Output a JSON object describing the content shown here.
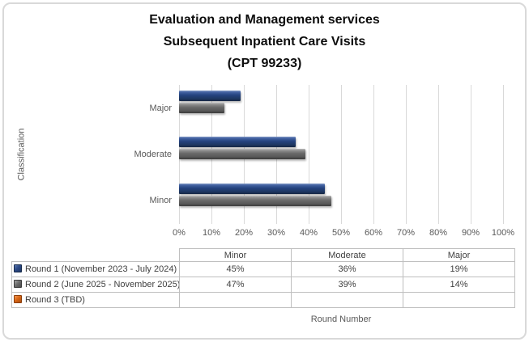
{
  "title": {
    "lines": [
      "Evaluation and Management services",
      "Subsequent Inpatient Care Visits",
      "(CPT 99233)"
    ]
  },
  "chart_data": {
    "type": "bar",
    "orientation": "horizontal",
    "title": "Evaluation and Management services Subsequent Inpatient Care Visits (CPT 99233)",
    "categories": [
      "Minor",
      "Moderate",
      "Major"
    ],
    "category_display_order_top_to_bottom": [
      "Major",
      "Moderate",
      "Minor"
    ],
    "series": [
      {
        "name": "Round 1 (November 2023 - July 2024)",
        "color": "#1F3864",
        "values": [
          45,
          36,
          19
        ]
      },
      {
        "name": "Round 2 (June 2025 - November 2025)",
        "color": "#595959",
        "values": [
          47,
          39,
          14
        ]
      },
      {
        "name": "Round 3 (TBD)",
        "color": "#C55A11",
        "values": [
          null,
          null,
          null
        ]
      }
    ],
    "xlabel": "Round Number",
    "ylabel": "Classification",
    "xlim": [
      0,
      100
    ],
    "xticks": [
      "0%",
      "10%",
      "20%",
      "30%",
      "40%",
      "50%",
      "60%",
      "70%",
      "80%",
      "90%",
      "100%"
    ],
    "grid": true,
    "legend_position": "bottom-table"
  },
  "legend_table": {
    "column_headers": [
      "Minor",
      "Moderate",
      "Major"
    ],
    "rows": [
      {
        "label": "Round 1 (November 2023 - July 2024)",
        "marker_color": "#1F3864",
        "values": [
          "45%",
          "36%",
          "19%"
        ]
      },
      {
        "label": "Round 2 (June 2025 - November 2025)",
        "marker_color": "#595959",
        "values": [
          "47%",
          "39%",
          "14%"
        ]
      },
      {
        "label": "Round 3 (TBD)",
        "marker_color": "#C55A11",
        "values": [
          "",
          "",
          ""
        ]
      }
    ]
  },
  "colors": {
    "series_round1": "#1F3864",
    "series_round2": "#595959",
    "series_round3": "#C55A11",
    "gridline": "#D9D9D9",
    "axis_text": "#595959",
    "table_border": "#BFBFBF",
    "table_text": "#404040",
    "chart_border": "#D9D9D9",
    "title_text": "#0D0D0D"
  }
}
